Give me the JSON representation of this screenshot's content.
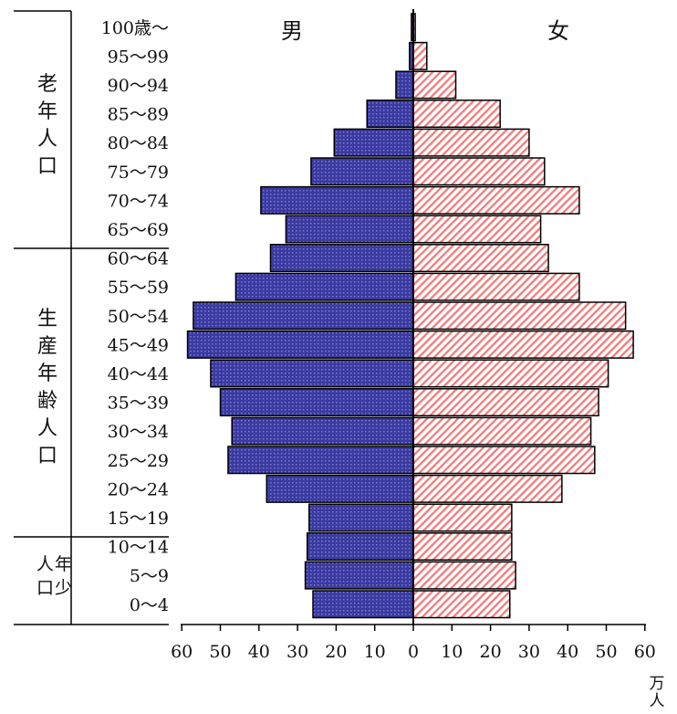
{
  "chart_data": {
    "type": "bar",
    "categories": [
      "100歳～",
      "95～99",
      "90～94",
      "85～89",
      "80～84",
      "75～79",
      "70～74",
      "65～69",
      "60～64",
      "55～59",
      "50～54",
      "45～49",
      "40～44",
      "35～39",
      "30～34",
      "25～29",
      "20～24",
      "15～19",
      "10～14",
      "5～9",
      "0～4"
    ],
    "series": [
      {
        "name": "男",
        "values": [
          0.5,
          1,
          4.5,
          12,
          20.5,
          26.5,
          39.5,
          33,
          37,
          46,
          57,
          58.5,
          52.5,
          50,
          47,
          48,
          38,
          27,
          27.5,
          28,
          26
        ]
      },
      {
        "name": "女",
        "values": [
          0.5,
          3.5,
          11,
          22.5,
          30,
          34,
          43,
          33,
          35,
          43,
          55,
          57,
          50.5,
          48,
          46,
          47,
          38.5,
          25.5,
          25.5,
          26.5,
          25
        ]
      }
    ],
    "xticks": [
      "60",
      "50",
      "40",
      "30",
      "20",
      "10",
      "0",
      "10",
      "20",
      "30",
      "40",
      "50",
      "60"
    ],
    "xlim": [
      -60,
      60
    ],
    "unit_label": [
      "万",
      "人"
    ],
    "group_labels": [
      {
        "name": "elderly",
        "chars": [
          "老",
          "年",
          "人",
          "口"
        ]
      },
      {
        "name": "working",
        "chars": [
          "生",
          "産",
          "年",
          "齢",
          "人",
          "口"
        ]
      },
      {
        "name": "young",
        "chars": [
          "年",
          "少",
          "人",
          "口"
        ]
      }
    ],
    "colors": {
      "male": "#3a3aa0",
      "female": "#f08080",
      "outline": "#000000"
    }
  }
}
